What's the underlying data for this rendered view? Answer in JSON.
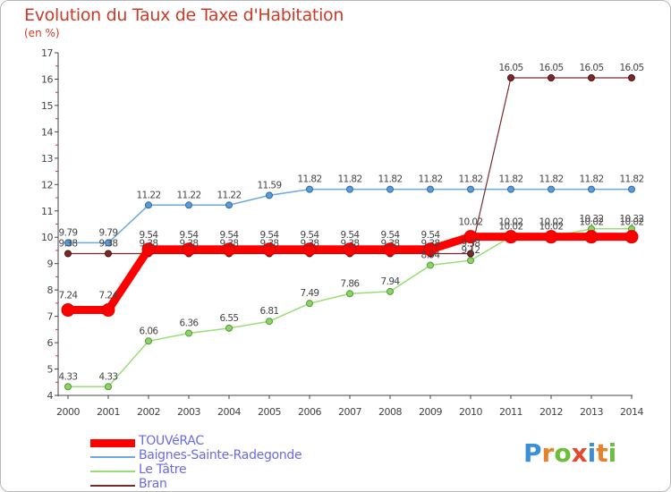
{
  "chart_data": {
    "type": "line",
    "title": "Evolution du Taux de Taxe d'Habitation",
    "unit_label": "(en %)",
    "x": [
      "2000",
      "2001",
      "2002",
      "2003",
      "2004",
      "2005",
      "2006",
      "2007",
      "2008",
      "2009",
      "2010",
      "2011",
      "2012",
      "2013",
      "2014"
    ],
    "ylim": [
      4,
      17
    ],
    "yticks": [
      4,
      5,
      6,
      7,
      8,
      9,
      10,
      11,
      12,
      13,
      14,
      15,
      16,
      17
    ],
    "grid": false,
    "legend_position": "bottom-left",
    "series": [
      {
        "name": "TOUVéRAC",
        "color": "#ff0000",
        "values": [
          7.24,
          7.24,
          9.54,
          9.54,
          9.54,
          9.54,
          9.54,
          9.54,
          9.54,
          9.54,
          10.02,
          10.02,
          10.02,
          10.02,
          10.02
        ],
        "labels": [
          "7.24",
          "7.24",
          "9.54",
          "9.54",
          "9.54",
          "9.54",
          "9.54",
          "9.54",
          "9.54",
          "9.54",
          "10.02",
          "10.02",
          "10.02",
          "10.02",
          "10.02"
        ]
      },
      {
        "name": "Baignes-Sainte-Radegonde",
        "color": "#6fa8dc",
        "values": [
          9.79,
          9.79,
          11.22,
          11.22,
          11.22,
          11.59,
          11.82,
          11.82,
          11.82,
          11.82,
          11.82,
          11.82,
          11.82,
          11.82,
          11.82
        ],
        "labels": [
          "9.79",
          "9.79",
          "11.22",
          "11.22",
          "11.22",
          "11.59",
          "11.82",
          "11.82",
          "11.82",
          "11.82",
          "11.82",
          "11.82",
          "11.82",
          "11.82",
          "11.82"
        ]
      },
      {
        "name": "Le Tâtre",
        "color": "#99dd77",
        "values": [
          4.33,
          4.33,
          6.06,
          6.36,
          6.55,
          6.81,
          7.49,
          7.86,
          7.94,
          8.94,
          9.12,
          10.02,
          10.02,
          10.32,
          10.32
        ],
        "labels": [
          "4.33",
          "4.33",
          "6.06",
          "6.36",
          "6.55",
          "6.81",
          "7.49",
          "7.86",
          "7.94",
          "8.94",
          "9.12",
          "10.02",
          "10.02",
          "10.32",
          "10.32"
        ]
      },
      {
        "name": "Bran",
        "color": "#7a2a2a",
        "values": [
          9.38,
          9.38,
          9.38,
          9.38,
          9.38,
          9.38,
          9.38,
          9.38,
          9.38,
          9.38,
          9.38,
          16.05,
          16.05,
          16.05,
          16.05
        ],
        "labels": [
          "9.38",
          "9.38",
          "9.38",
          "9.38",
          "9.38",
          "9.38",
          "9.38",
          "9.38",
          "9.38",
          "9.38",
          "9.38",
          "16.05",
          "16.05",
          "16.05",
          "16.05"
        ]
      }
    ]
  },
  "logo": {
    "letters": [
      "P",
      "r",
      "o",
      "x",
      "i",
      "t",
      "i"
    ],
    "colors": [
      "#3a8fd6",
      "#e8812b",
      "#6bbf3a",
      "#e34a2f",
      "#3a8fd6",
      "#e8812b",
      "#6bbf3a"
    ]
  }
}
